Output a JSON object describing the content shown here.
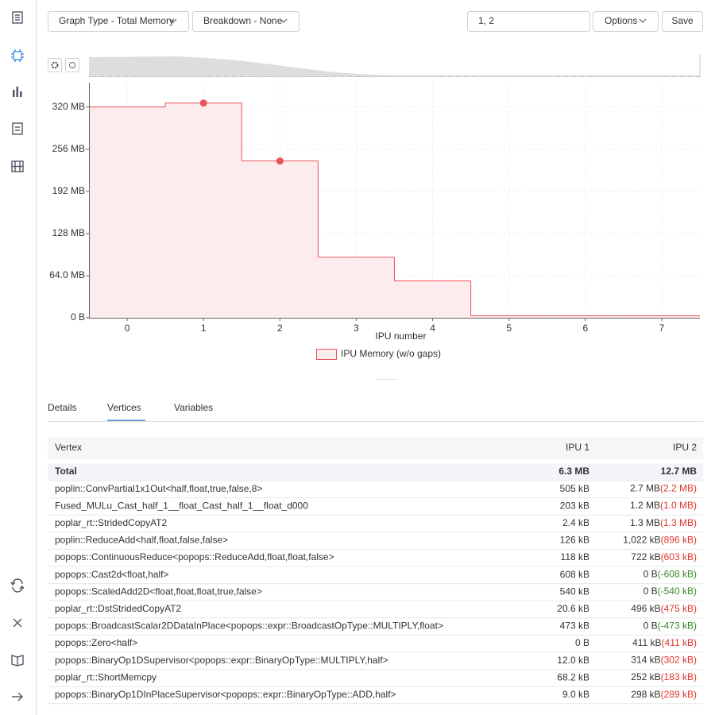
{
  "toolbar": {
    "graph_type": "Graph Type - Total Memory",
    "breakdown": "Breakdown - None",
    "ipu_input": "1, 2",
    "options": "Options",
    "save": "Save"
  },
  "chart_data": {
    "type": "step",
    "x_label": "IPU number",
    "x": [
      0,
      1,
      2,
      3,
      4,
      5,
      6,
      7
    ],
    "xlim": [
      -0.5,
      7.5
    ],
    "xticks": [
      0,
      1,
      2,
      3,
      4,
      5,
      6,
      7
    ],
    "ylim": [
      0,
      357
    ],
    "yticks": [
      {
        "value": 0,
        "label": "0 B"
      },
      {
        "value": 64,
        "label": "64.0 MB"
      },
      {
        "value": 128,
        "label": "128 MB"
      },
      {
        "value": 192,
        "label": "192 MB"
      },
      {
        "value": 256,
        "label": "256 MB"
      },
      {
        "value": 320,
        "label": "320 MB"
      }
    ],
    "grid": true,
    "series": [
      {
        "name": "IPU Memory (w/o gaps)",
        "color": "#e8535c",
        "fill": "#fdeced",
        "values": [
          320,
          326,
          238,
          92,
          56,
          3,
          3,
          3
        ]
      }
    ],
    "highlighted": [
      1,
      2
    ]
  },
  "tabs": [
    "Details",
    "Vertices",
    "Variables"
  ],
  "active_tab": 1,
  "table": {
    "columns": [
      "Vertex",
      "IPU 1",
      "IPU 2"
    ],
    "rows": [
      {
        "vertex": "Total",
        "ipu1": "6.3 MB",
        "ipu2": "12.7 MB"
      },
      {
        "vertex": "poplin::ConvPartial1x1Out<half,float,true,false,8>",
        "ipu1": "505 kB",
        "ipu2": "2.7 MB",
        "diff": "(2.2 MB)",
        "diff_color": "#e0352b"
      },
      {
        "vertex": "Fused_MULu_Cast_half_1__float_Cast_half_1__float_d000",
        "ipu1": "203 kB",
        "ipu2": "1.2 MB",
        "diff": "(1.0 MB)",
        "diff_color": "#e0352b"
      },
      {
        "vertex": "poplar_rt::StridedCopyAT2",
        "ipu1": "2.4 kB",
        "ipu2": "1.3 MB",
        "diff": "(1.3 MB)",
        "diff_color": "#e0352b"
      },
      {
        "vertex": "poplin::ReduceAdd<half,float,false,false>",
        "ipu1": "126 kB",
        "ipu2": "1,022 kB",
        "diff": "(896 kB)",
        "diff_color": "#e0352b"
      },
      {
        "vertex": "popops::ContinuousReduce<popops::ReduceAdd,float,float,false>",
        "ipu1": "118 kB",
        "ipu2": "722 kB",
        "diff": "(603 kB)",
        "diff_color": "#e0352b"
      },
      {
        "vertex": "popops::Cast2d<float,half>",
        "ipu1": "608 kB",
        "ipu2": "0 B",
        "diff": "(-608 kB)",
        "diff_color": "#3c8a2e"
      },
      {
        "vertex": "popops::ScaledAdd2D<float,float,float,true,false>",
        "ipu1": "540 kB",
        "ipu2": "0 B",
        "diff": "(-540 kB)",
        "diff_color": "#3c8a2e"
      },
      {
        "vertex": "poplar_rt::DstStridedCopyAT2",
        "ipu1": "20.6 kB",
        "ipu2": "496 kB",
        "diff": "(475 kB)",
        "diff_color": "#e0352b"
      },
      {
        "vertex": "popops::BroadcastScalar2DDataInPlace<popops::expr::BroadcastOpType::MULTIPLY,float>",
        "ipu1": "473 kB",
        "ipu2": "0 B",
        "diff": "(-473 kB)",
        "diff_color": "#3c8a2e"
      },
      {
        "vertex": "popops::Zero<half>",
        "ipu1": "0 B",
        "ipu2": "411 kB",
        "diff": "(411 kB)",
        "diff_color": "#e0352b"
      },
      {
        "vertex": "popops::BinaryOp1DSupervisor<popops::expr::BinaryOpType::MULTIPLY,half>",
        "ipu1": "12.0 kB",
        "ipu2": "314 kB",
        "diff": "(302 kB)",
        "diff_color": "#e0352b"
      },
      {
        "vertex": "poplar_rt::ShortMemcpy",
        "ipu1": "68.2 kB",
        "ipu2": "252 kB",
        "diff": "(183 kB)",
        "diff_color": "#e0352b"
      },
      {
        "vertex": "popops::BinaryOp1DInPlaceSupervisor<popops::expr::BinaryOpType::ADD,half>",
        "ipu1": "9.0 kB",
        "ipu2": "298 kB",
        "diff": "(289 kB)",
        "diff_color": "#e0352b"
      }
    ]
  }
}
